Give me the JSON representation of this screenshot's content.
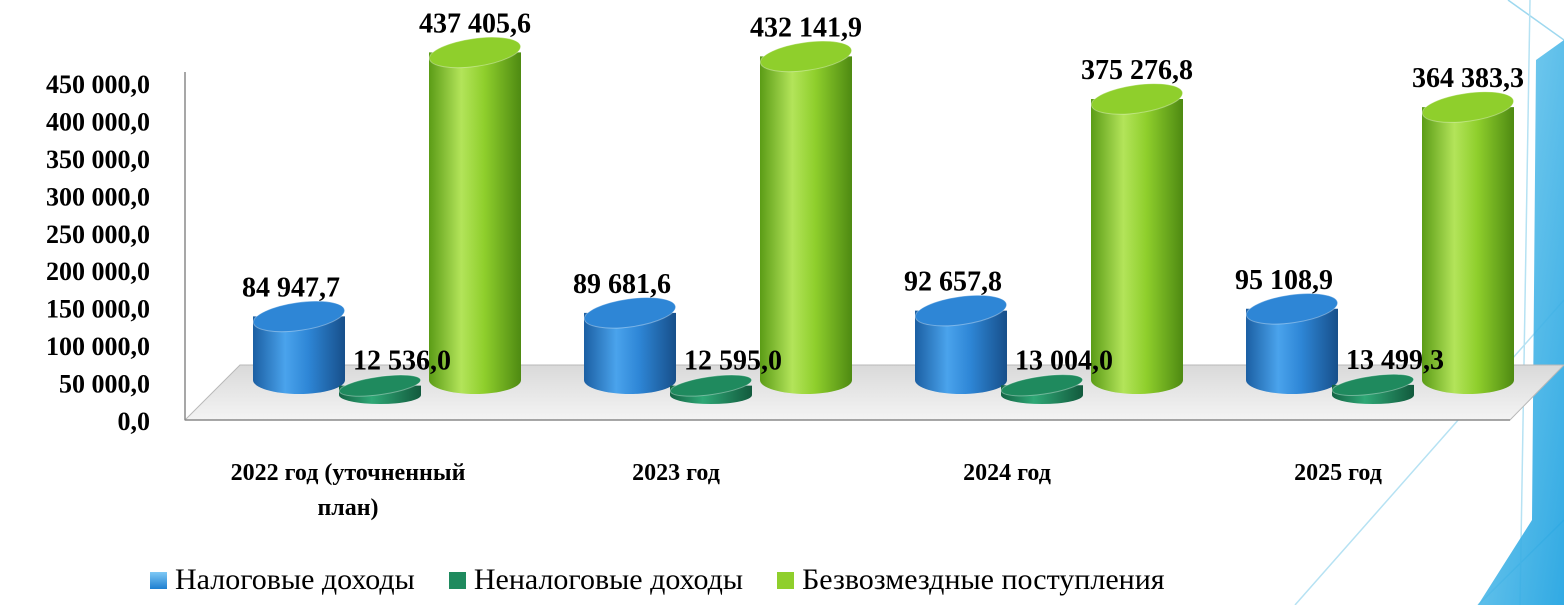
{
  "chart_data": {
    "type": "bar",
    "title": "",
    "xlabel": "",
    "ylabel": "",
    "ylim": [
      0,
      450000
    ],
    "y_ticks": [
      "0,0",
      "50 000,0",
      "100 000,0",
      "150 000,0",
      "200 000,0",
      "250 000,0",
      "300 000,0",
      "350 000,0",
      "400 000,0",
      "450 000,0"
    ],
    "categories": [
      "2022 год (уточненный план)",
      "2023 год",
      "2024 год",
      "2025 год"
    ],
    "series": [
      {
        "name": "Налоговые доходы",
        "color": "#2e86d6",
        "values": [
          84947.7,
          89681.6,
          92657.8,
          95108.9
        ],
        "labels": [
          "84 947,7",
          "89 681,6",
          "92 657,8",
          "95 108,9"
        ]
      },
      {
        "name": "Неналоговые доходы",
        "color": "#1f8a5e",
        "values": [
          12536.0,
          12595.0,
          13004.0,
          13499.3
        ],
        "labels": [
          "12 536,0",
          "12 595,0",
          "13 004,0",
          "13 499,3"
        ]
      },
      {
        "name": "Безвозмездные поступления",
        "color": "#8fcf2c",
        "values": [
          437405.6,
          432141.9,
          375276.8,
          364383.3
        ],
        "labels": [
          "437 405,6",
          "432 141,9",
          "375 276,8",
          "364 383,3"
        ]
      }
    ],
    "legend_position": "bottom",
    "grid": false,
    "style": "3d-cylinder"
  }
}
